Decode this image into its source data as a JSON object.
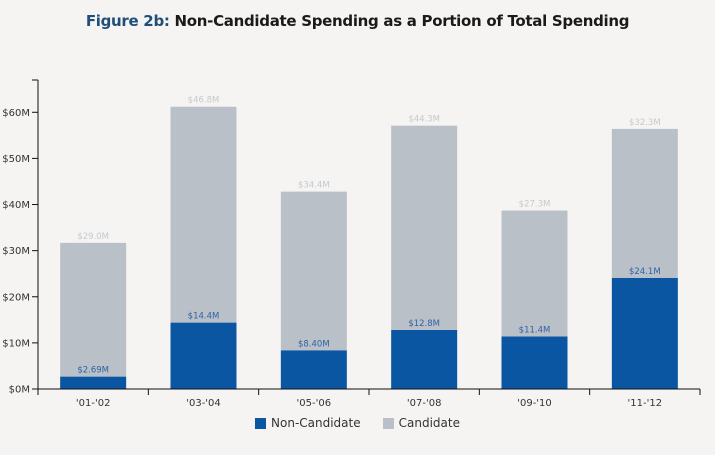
{
  "title": {
    "figure_label": "Figure 2b:",
    "text": " Non-Candidate Spending as a Portion of Total Spending"
  },
  "colors": {
    "non_candidate": "#0a56a3",
    "candidate": "#bac0c7",
    "title_label": "#1f4e79"
  },
  "chart_data": {
    "type": "bar",
    "stacked": true,
    "title": "Figure 2b: Non-Candidate Spending as a Portion of Total Spending",
    "xlabel": "",
    "ylabel": "",
    "categories": [
      "'01-'02",
      "'03-'04",
      "'05-'06",
      "'07-'08",
      "'09-'10",
      "'11-'12"
    ],
    "series": [
      {
        "name": "Non-Candidate",
        "values": [
          2.69,
          14.4,
          8.4,
          12.8,
          11.4,
          24.1
        ],
        "labels": [
          "$2.69M",
          "$14.4M",
          "$8.40M",
          "$12.8M",
          "$11.4M",
          "$24.1M"
        ]
      },
      {
        "name": "Candidate",
        "values": [
          29.0,
          46.8,
          34.4,
          44.3,
          27.3,
          32.3
        ],
        "labels": [
          "$29.0M",
          "$46.8M",
          "$34.4M",
          "$44.3M",
          "$27.3M",
          "$32.3M"
        ]
      }
    ],
    "y_ticks": [
      0,
      10,
      20,
      30,
      40,
      50,
      60
    ],
    "y_tick_labels": [
      "$0M",
      "$10M",
      "$20M",
      "$30M",
      "$40M",
      "$50M",
      "$60M"
    ],
    "ylim": [
      0,
      67
    ],
    "units": "millions USD",
    "grid": false,
    "legend_position": "bottom-center"
  }
}
